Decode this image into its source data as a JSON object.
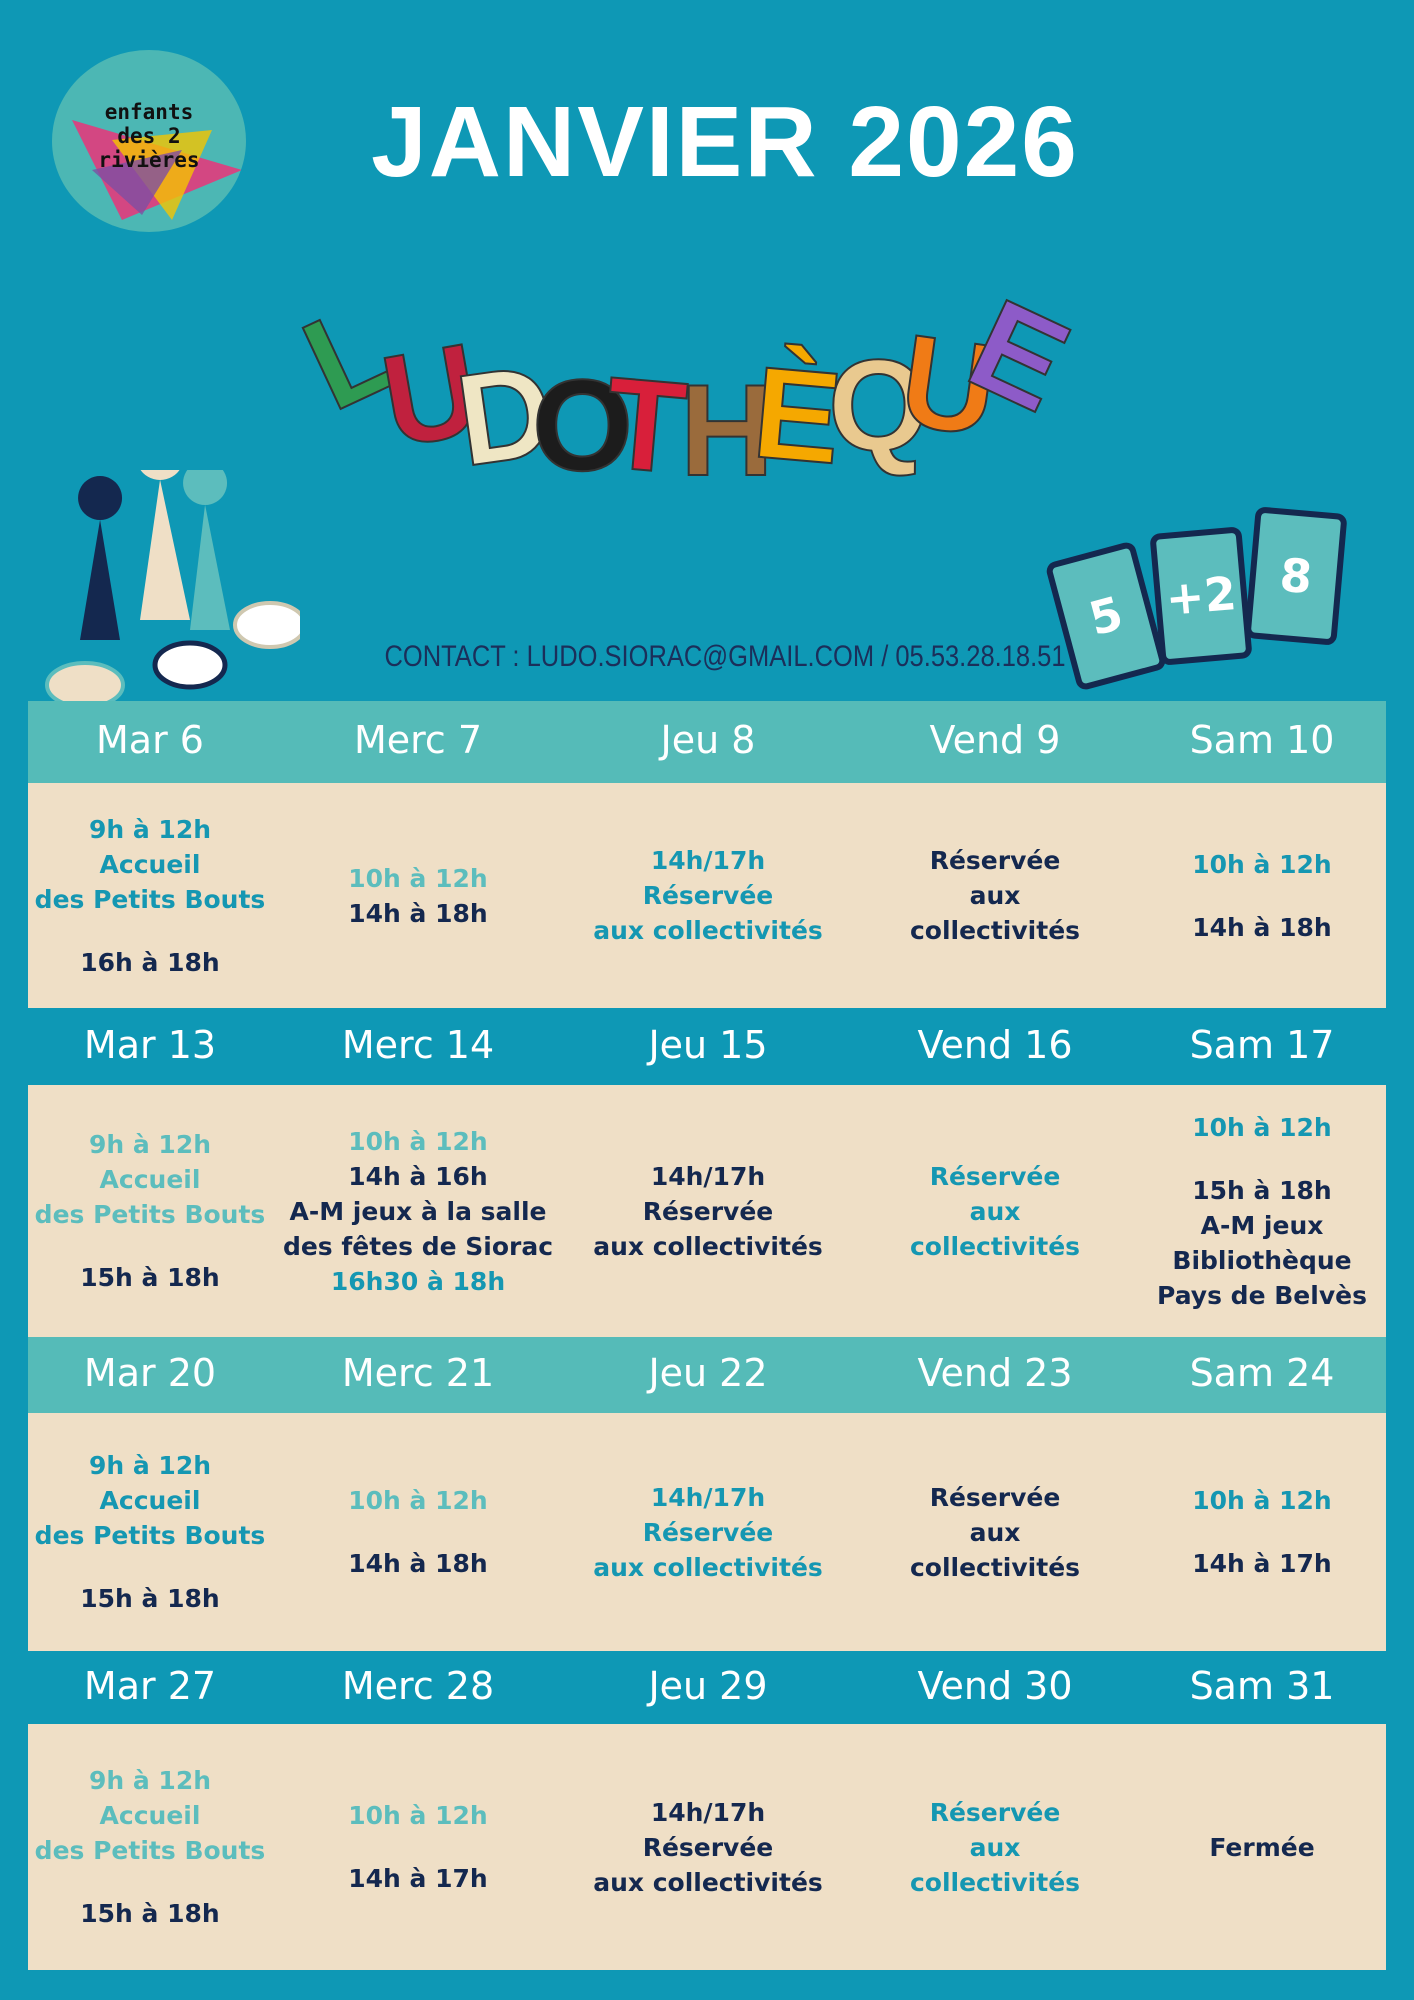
{
  "header": {
    "title": "JANVIER 2026",
    "logo": [
      "enfants",
      "des 2",
      "rivières"
    ],
    "word": [
      "L",
      "U",
      "D",
      "O",
      "T",
      "H",
      "È",
      "Q",
      "U",
      "E"
    ],
    "word_colors": [
      "#2e9b52",
      "#c0213e",
      "#efe6c4",
      "#1c1c1c",
      "#d81f3a",
      "#9a6b3c",
      "#f5a800",
      "#e9c98f",
      "#f07b16",
      "#8d5bc8"
    ],
    "cards": [
      "5",
      "+2",
      "8"
    ],
    "contact": "CONTACT : LUDO.SIORAC@GMAIL.COM / 05.53.28.18.51"
  },
  "weeks": [
    {
      "header_color": "#55bbb8",
      "days": [
        {
          "label": "Mar 6",
          "blocks": [
            [
              {
                "text": "9h à 12h",
                "color": "#1597b2"
              },
              {
                "text": "Accueil",
                "color": "#1597b2"
              },
              {
                "text": "des Petits Bouts",
                "color": "#1597b2"
              }
            ],
            [
              {
                "text": "16h à 18h",
                "color": "#14284f"
              }
            ]
          ]
        },
        {
          "label": "Merc 7",
          "blocks": [
            [
              {
                "text": "10h à 12h",
                "color": "#5cbdbd"
              },
              {
                "text": "14h à 18h",
                "color": "#14284f"
              }
            ]
          ]
        },
        {
          "label": "Jeu 8",
          "blocks": [
            [
              {
                "text": "14h/17h",
                "color": "#1597b2"
              },
              {
                "text": "Réservée",
                "color": "#1597b2"
              },
              {
                "text": "aux collectivités",
                "color": "#1597b2"
              }
            ]
          ]
        },
        {
          "label": "Vend 9",
          "blocks": [
            [
              {
                "text": "Réservée",
                "color": "#14284f"
              },
              {
                "text": "aux",
                "color": "#14284f"
              },
              {
                "text": "collectivités",
                "color": "#14284f"
              }
            ]
          ]
        },
        {
          "label": "Sam 10",
          "blocks": [
            [
              {
                "text": "10h à 12h",
                "color": "#1597b2"
              }
            ],
            [
              {
                "text": "14h à 18h",
                "color": "#14284f"
              }
            ]
          ]
        }
      ]
    },
    {
      "header_color": "#0e98b5",
      "days": [
        {
          "label": "Mar 13",
          "blocks": [
            [
              {
                "text": "9h à 12h",
                "color": "#5cbdbd"
              },
              {
                "text": "Accueil",
                "color": "#5cbdbd"
              },
              {
                "text": "des Petits Bouts",
                "color": "#5cbdbd"
              }
            ],
            [
              {
                "text": "15h à 18h",
                "color": "#14284f"
              }
            ]
          ]
        },
        {
          "label": "Merc 14",
          "blocks": [
            [
              {
                "text": "10h à 12h",
                "color": "#5cbdbd"
              },
              {
                "text": "14h à 16h",
                "color": "#14284f"
              },
              {
                "text": "A-M jeux à la salle",
                "color": "#14284f"
              },
              {
                "text": "des fêtes de Siorac",
                "color": "#14284f"
              },
              {
                "text": "16h30 à 18h",
                "color": "#1597b2"
              }
            ]
          ]
        },
        {
          "label": "Jeu 15",
          "blocks": [
            [
              {
                "text": "14h/17h",
                "color": "#14284f"
              },
              {
                "text": "Réservée",
                "color": "#14284f"
              },
              {
                "text": "aux collectivités",
                "color": "#14284f"
              }
            ]
          ]
        },
        {
          "label": "Vend 16",
          "blocks": [
            [
              {
                "text": "Réservée",
                "color": "#1597b2"
              },
              {
                "text": "aux",
                "color": "#1597b2"
              },
              {
                "text": "collectivités",
                "color": "#1597b2"
              }
            ]
          ]
        },
        {
          "label": "Sam 17",
          "blocks": [
            [
              {
                "text": "10h à 12h",
                "color": "#1597b2"
              }
            ],
            [
              {
                "text": "15h à 18h",
                "color": "#14284f"
              },
              {
                "text": "A-M jeux",
                "color": "#14284f"
              },
              {
                "text": "Bibliothèque",
                "color": "#14284f"
              },
              {
                "text": "Pays de Belvès",
                "color": "#14284f"
              }
            ]
          ]
        }
      ]
    },
    {
      "header_color": "#55bbb8",
      "days": [
        {
          "label": "Mar 20",
          "blocks": [
            [
              {
                "text": "9h à 12h",
                "color": "#1597b2"
              },
              {
                "text": "Accueil",
                "color": "#1597b2"
              },
              {
                "text": "des Petits Bouts",
                "color": "#1597b2"
              }
            ],
            [
              {
                "text": "15h à 18h",
                "color": "#14284f"
              }
            ]
          ]
        },
        {
          "label": "Merc 21",
          "blocks": [
            [
              {
                "text": "10h à 12h",
                "color": "#5cbdbd"
              }
            ],
            [
              {
                "text": "14h à 18h",
                "color": "#14284f"
              }
            ]
          ]
        },
        {
          "label": "Jeu 22",
          "blocks": [
            [
              {
                "text": "14h/17h",
                "color": "#1597b2"
              },
              {
                "text": "Réservée",
                "color": "#1597b2"
              },
              {
                "text": "aux collectivités",
                "color": "#1597b2"
              }
            ]
          ]
        },
        {
          "label": "Vend 23",
          "blocks": [
            [
              {
                "text": "Réservée",
                "color": "#14284f"
              },
              {
                "text": "aux",
                "color": "#14284f"
              },
              {
                "text": "collectivités",
                "color": "#14284f"
              }
            ]
          ]
        },
        {
          "label": "Sam 24",
          "blocks": [
            [
              {
                "text": "10h à 12h",
                "color": "#1597b2"
              }
            ],
            [
              {
                "text": "14h à 17h",
                "color": "#14284f"
              }
            ]
          ]
        }
      ]
    },
    {
      "header_color": "#0e98b5",
      "days": [
        {
          "label": "Mar 27",
          "blocks": [
            [
              {
                "text": "9h à 12h",
                "color": "#5cbdbd"
              },
              {
                "text": "Accueil",
                "color": "#5cbdbd"
              },
              {
                "text": "des Petits Bouts",
                "color": "#5cbdbd"
              }
            ],
            [
              {
                "text": "15h à 18h",
                "color": "#14284f"
              }
            ]
          ]
        },
        {
          "label": "Merc 28",
          "blocks": [
            [
              {
                "text": "10h à 12h",
                "color": "#5cbdbd"
              }
            ],
            [
              {
                "text": "14h à 17h",
                "color": "#14284f"
              }
            ]
          ]
        },
        {
          "label": "Jeu 29",
          "blocks": [
            [
              {
                "text": "14h/17h",
                "color": "#14284f"
              },
              {
                "text": "Réservée",
                "color": "#14284f"
              },
              {
                "text": "aux collectivités",
                "color": "#14284f"
              }
            ]
          ]
        },
        {
          "label": "Vend 30",
          "blocks": [
            [
              {
                "text": "Réservée",
                "color": "#1597b2"
              },
              {
                "text": "aux",
                "color": "#1597b2"
              },
              {
                "text": "collectivités",
                "color": "#1597b2"
              }
            ]
          ]
        },
        {
          "label": "Sam 31",
          "blocks": [
            [
              {
                "text": "Fermée",
                "color": "#14284f"
              }
            ]
          ]
        }
      ]
    }
  ]
}
